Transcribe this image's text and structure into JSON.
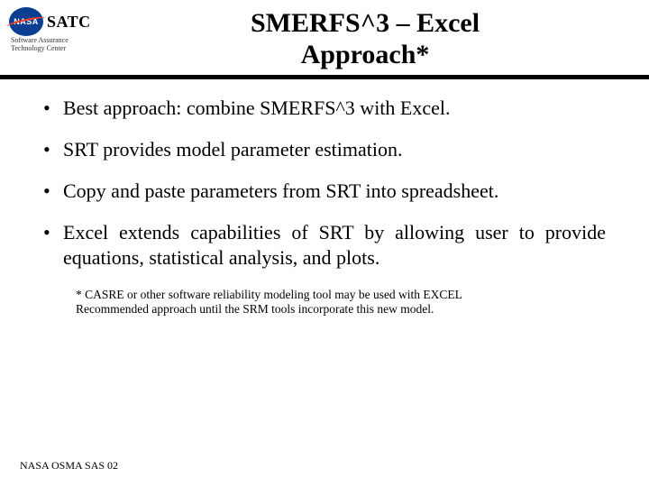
{
  "logo": {
    "nasa": "NASA",
    "satc": "SATC",
    "sub1": "Software Assurance",
    "sub2": "Technology Center"
  },
  "title": {
    "line1": "SMERFS^3 – Excel",
    "line2": "Approach*"
  },
  "bullets": [
    "Best approach:  combine SMERFS^3 with Excel.",
    "SRT provides model parameter estimation.",
    "Copy and paste parameters from SRT into spreadsheet.",
    "Excel extends capabilities of SRT by allowing user to provide equations, statistical analysis, and plots."
  ],
  "footnote": {
    "line1": "* CASRE or other software  reliability modeling tool may be used with EXCEL",
    "line2": "Recommended approach until the SRM tools incorporate this new model."
  },
  "footer": "NASA OSMA SAS 02",
  "colors": {
    "nasa_blue": "#0b3d91",
    "nasa_red": "#fc3d21",
    "text": "#000000",
    "background": "#ffffff"
  },
  "typography": {
    "title_fontsize": 30,
    "bullet_fontsize": 22,
    "footnote_fontsize": 13.5,
    "footer_fontsize": 12,
    "font_family": "Times New Roman"
  }
}
